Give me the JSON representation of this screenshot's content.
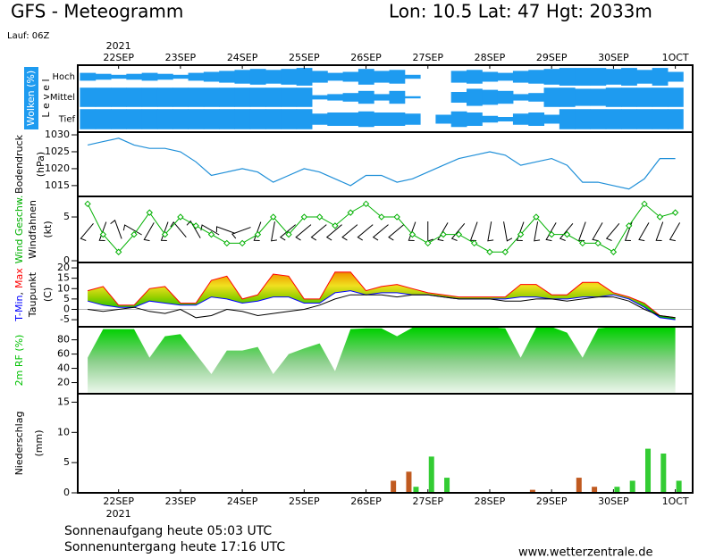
{
  "header": {
    "title": "GFS - Meteogramm",
    "location": "Lon: 10.5 Lat: 47 Hgt: 2033m",
    "run": "Lauf: 06Z"
  },
  "chart_data": [
    {
      "type": "cloud-cover",
      "ylabel": "Wolken (%)",
      "ylabel2": "L e v e l",
      "year": "2021",
      "xlim": [
        -0.66,
        9.28
      ],
      "xticks": [
        {
          "value": 0,
          "label": "22SEP"
        },
        {
          "value": 1,
          "label": "23SEP"
        },
        {
          "value": 2,
          "label": "24SEP"
        },
        {
          "value": 3,
          "label": "25SEP"
        },
        {
          "value": 4,
          "label": "26SEP"
        },
        {
          "value": 5,
          "label": "27SEP"
        },
        {
          "value": 6,
          "label": "28SEP"
        },
        {
          "value": 7,
          "label": "29SEP"
        },
        {
          "value": 8,
          "label": "30SEP"
        },
        {
          "value": 9,
          "label": "1OCT"
        }
      ],
      "x": [
        -0.5,
        -0.25,
        0,
        0.25,
        0.5,
        0.75,
        1,
        1.25,
        1.5,
        1.75,
        2,
        2.25,
        2.5,
        2.75,
        3,
        3.25,
        3.5,
        3.75,
        4,
        4.25,
        4.5,
        4.75,
        5,
        5.25,
        5.5,
        5.75,
        6,
        6.25,
        6.5,
        6.75,
        7,
        7.25,
        7.5,
        7.75,
        8,
        8.25,
        8.5,
        8.75,
        9
      ],
      "series": [
        {
          "name": "Hoch",
          "color": "#1e9bf0",
          "values": [
            40,
            30,
            20,
            30,
            40,
            30,
            20,
            40,
            50,
            60,
            70,
            80,
            70,
            80,
            90,
            60,
            40,
            50,
            80,
            60,
            70,
            20,
            0,
            0,
            60,
            70,
            50,
            40,
            60,
            70,
            80,
            90,
            90,
            90,
            80,
            90,
            70,
            90,
            50
          ]
        },
        {
          "name": "Mittel",
          "color": "#1e9bf0",
          "values": [
            90,
            90,
            90,
            90,
            90,
            90,
            90,
            90,
            90,
            90,
            90,
            90,
            90,
            90,
            90,
            20,
            30,
            40,
            60,
            30,
            60,
            10,
            0,
            0,
            50,
            80,
            70,
            60,
            30,
            40,
            90,
            90,
            80,
            80,
            90,
            90,
            90,
            90,
            90
          ]
        },
        {
          "name": "Tief",
          "color": "#1e9bf0",
          "values": [
            90,
            90,
            90,
            90,
            90,
            90,
            90,
            90,
            90,
            90,
            90,
            90,
            90,
            90,
            90,
            50,
            60,
            60,
            70,
            60,
            60,
            50,
            0,
            40,
            70,
            60,
            30,
            20,
            50,
            60,
            40,
            90,
            90,
            90,
            90,
            90,
            90,
            90,
            90
          ]
        }
      ]
    },
    {
      "type": "line",
      "ylabel": "Bodendruck",
      "yunit": "(hPa)",
      "color": "#1f8fd8",
      "xlim": [
        -0.66,
        9.28
      ],
      "x": [
        -0.5,
        -0.25,
        0,
        0.25,
        0.5,
        0.75,
        1,
        1.25,
        1.5,
        1.75,
        2,
        2.25,
        2.5,
        2.75,
        3,
        3.25,
        3.5,
        3.75,
        4,
        4.25,
        4.5,
        4.75,
        5,
        5.25,
        5.5,
        5.75,
        6,
        6.25,
        6.5,
        6.75,
        7,
        7.25,
        7.5,
        7.75,
        8,
        8.25,
        8.5,
        8.75,
        9
      ],
      "values": [
        1027,
        1028,
        1029,
        1027,
        1026,
        1026,
        1025,
        1022,
        1018,
        1019,
        1020,
        1019,
        1016,
        1018,
        1020,
        1019,
        1017,
        1015,
        1018,
        1018,
        1016,
        1017,
        1019,
        1021,
        1023,
        1024,
        1025,
        1024,
        1021,
        1022,
        1023,
        1021,
        1016,
        1016,
        1015,
        1014,
        1017,
        1023,
        1023
      ],
      "ylim": [
        1011.8,
        1030.8
      ],
      "yticks": [
        1015,
        1020,
        1025,
        1030
      ]
    },
    {
      "type": "wind",
      "ylabel": "Windfahnen",
      "yunit": "(kt)",
      "xlim": [
        -0.66,
        9.28
      ],
      "x": [
        -0.5,
        -0.25,
        0,
        0.25,
        0.5,
        0.75,
        1,
        1.25,
        1.5,
        1.75,
        2,
        2.25,
        2.5,
        2.75,
        3,
        3.25,
        3.5,
        3.75,
        4,
        4.25,
        4.5,
        4.75,
        5,
        5.25,
        5.5,
        5.75,
        6,
        6.25,
        6.5,
        6.75,
        7,
        7.25,
        7.5,
        7.75,
        8,
        8.25,
        8.5,
        8.75,
        9
      ],
      "series": [
        {
          "name": "Wind Geschw.",
          "color": "#00b000",
          "values": [
            6.5,
            3,
            1,
            3,
            5.5,
            3,
            5,
            4,
            3,
            2,
            2,
            3,
            5,
            3,
            5,
            5,
            4,
            5.5,
            6.5,
            5,
            5,
            3,
            2,
            3,
            3,
            2,
            1,
            1,
            3,
            5,
            3,
            3,
            2,
            2,
            1,
            4,
            6.5,
            5,
            5.5
          ]
        }
      ],
      "directions": [
        220,
        200,
        340,
        300,
        210,
        200,
        320,
        330,
        300,
        290,
        250,
        200,
        190,
        230,
        230,
        230,
        230,
        230,
        230,
        230,
        230,
        200,
        180,
        210,
        220,
        200,
        190,
        170,
        200,
        190,
        210,
        220,
        200,
        210,
        220,
        200,
        210,
        200,
        210
      ],
      "ylim": [
        -0.2,
        7.35
      ],
      "yticks": [
        0,
        5
      ]
    },
    {
      "type": "temperature",
      "yunit": "(C)",
      "separator": ",",
      "xlim": [
        -0.66,
        9.28
      ],
      "x": [
        -0.5,
        -0.25,
        0,
        0.25,
        0.5,
        0.75,
        1,
        1.25,
        1.5,
        1.75,
        2,
        2.25,
        2.5,
        2.75,
        3,
        3.25,
        3.5,
        3.75,
        4,
        4.25,
        4.5,
        4.75,
        5,
        5.25,
        5.5,
        5.75,
        6,
        6.25,
        6.5,
        6.75,
        7,
        7.25,
        7.5,
        7.75,
        8,
        8.25,
        8.5,
        8.75,
        9
      ],
      "series": [
        {
          "name": "T-Min",
          "color": "#0000ff",
          "values": [
            4,
            2,
            1,
            1,
            4,
            3,
            2,
            2,
            6,
            5,
            3,
            4,
            6,
            6,
            3,
            3,
            8,
            9,
            7,
            8,
            8,
            7,
            7,
            6,
            5,
            5,
            5,
            5,
            6,
            6,
            5,
            5,
            6,
            6,
            7,
            5,
            1,
            -4,
            -5
          ]
        },
        {
          "name": "Max",
          "color": "#ff0000",
          "values": [
            9,
            11,
            2,
            2,
            10,
            11,
            3,
            3,
            14,
            16,
            5,
            7,
            17,
            16,
            5,
            5,
            18,
            18,
            9,
            11,
            12,
            10,
            8,
            7,
            6,
            6,
            6,
            6,
            12,
            12,
            7,
            7,
            13,
            13,
            8,
            6,
            3,
            -3,
            -4
          ]
        },
        {
          "name": "Taupunkt",
          "color": "#000000",
          "values": [
            0,
            -1,
            0,
            1,
            -1,
            -2,
            0,
            -4,
            -3,
            0,
            -1,
            -3,
            -2,
            -1,
            0,
            2,
            5,
            7,
            7,
            7,
            6,
            7,
            7,
            6,
            5,
            5,
            5,
            4,
            4,
            5,
            5,
            4,
            5,
            6,
            6,
            4,
            0,
            -3,
            -4
          ]
        }
      ],
      "ylim": [
        -8.4,
        22.6
      ],
      "yticks": [
        -5,
        0,
        5,
        10,
        15,
        20
      ]
    },
    {
      "type": "area",
      "ylabel": "2m RF (%)",
      "color": "#00c000",
      "xlim": [
        -0.66,
        9.28
      ],
      "x": [
        -0.5,
        -0.25,
        0,
        0.25,
        0.5,
        0.75,
        1,
        1.25,
        1.5,
        1.75,
        2,
        2.25,
        2.5,
        2.75,
        3,
        3.25,
        3.5,
        3.75,
        4,
        4.25,
        4.5,
        4.75,
        5,
        5.25,
        5.5,
        5.75,
        6,
        6.25,
        6.5,
        6.75,
        7,
        7.25,
        7.5,
        7.75,
        8,
        8.25,
        8.5,
        8.75,
        9
      ],
      "values": [
        55,
        95,
        95,
        95,
        55,
        85,
        88,
        60,
        32,
        65,
        65,
        70,
        32,
        60,
        68,
        75,
        36,
        95,
        96,
        96,
        85,
        97,
        98,
        98,
        98,
        98,
        98,
        96,
        55,
        97,
        98,
        90,
        55,
        96,
        98,
        98,
        98,
        98,
        98
      ],
      "ylim": [
        4.4,
        98.3
      ],
      "yticks": [
        20,
        40,
        60,
        80
      ]
    },
    {
      "type": "precip",
      "ylabel": "Niederschlag",
      "yunit": "(mm)",
      "year": "2021",
      "xlim": [
        -0.66,
        9.28
      ],
      "xticks": [
        {
          "value": 0,
          "label": "22SEP"
        },
        {
          "value": 1,
          "label": "23SEP"
        },
        {
          "value": 2,
          "label": "24SEP"
        },
        {
          "value": 3,
          "label": "25SEP"
        },
        {
          "value": 4,
          "label": "26SEP"
        },
        {
          "value": 5,
          "label": "27SEP"
        },
        {
          "value": 6,
          "label": "28SEP"
        },
        {
          "value": 7,
          "label": "29SEP"
        },
        {
          "value": 8,
          "label": "30SEP"
        },
        {
          "value": 9,
          "label": "1OCT"
        }
      ],
      "x": [
        -0.5,
        -0.25,
        0,
        0.25,
        0.5,
        0.75,
        1,
        1.25,
        1.5,
        1.75,
        2,
        2.25,
        2.5,
        2.75,
        3,
        3.25,
        3.5,
        3.75,
        4,
        4.25,
        4.5,
        4.75,
        5,
        5.25,
        5.5,
        5.75,
        6,
        6.25,
        6.5,
        6.75,
        7,
        7.25,
        7.5,
        7.75,
        8,
        8.25,
        8.5,
        8.75,
        9
      ],
      "series": [
        {
          "color": "#33cc33",
          "values": [
            0,
            0,
            0,
            0,
            0,
            0,
            0,
            0,
            0,
            0,
            0,
            0,
            0,
            0,
            0,
            0,
            0,
            0,
            0,
            0,
            0,
            1,
            6,
            2.5,
            0,
            0,
            0,
            0,
            0,
            0,
            0,
            0,
            0,
            0,
            1,
            2,
            7.3,
            6.5,
            2
          ]
        },
        {
          "color": "#c05a20",
          "values": [
            0,
            0,
            0,
            0,
            0,
            0,
            0,
            0,
            0,
            0,
            0,
            0,
            0,
            0,
            0,
            0,
            0,
            0,
            0,
            0,
            2,
            3.5,
            0,
            0,
            0,
            0,
            0,
            0,
            0,
            0.5,
            0,
            0,
            2.5,
            1,
            0,
            0,
            0,
            0,
            0
          ]
        }
      ],
      "ylim": [
        0,
        16.4
      ],
      "yticks": [
        0,
        5,
        10,
        15
      ]
    }
  ],
  "footer": {
    "sunrise": "Sonnenaufgang heute 05:03 UTC",
    "sunset": "Sonnenuntergang heute 17:16 UTC",
    "source": "www.wetterzentrale.de"
  }
}
